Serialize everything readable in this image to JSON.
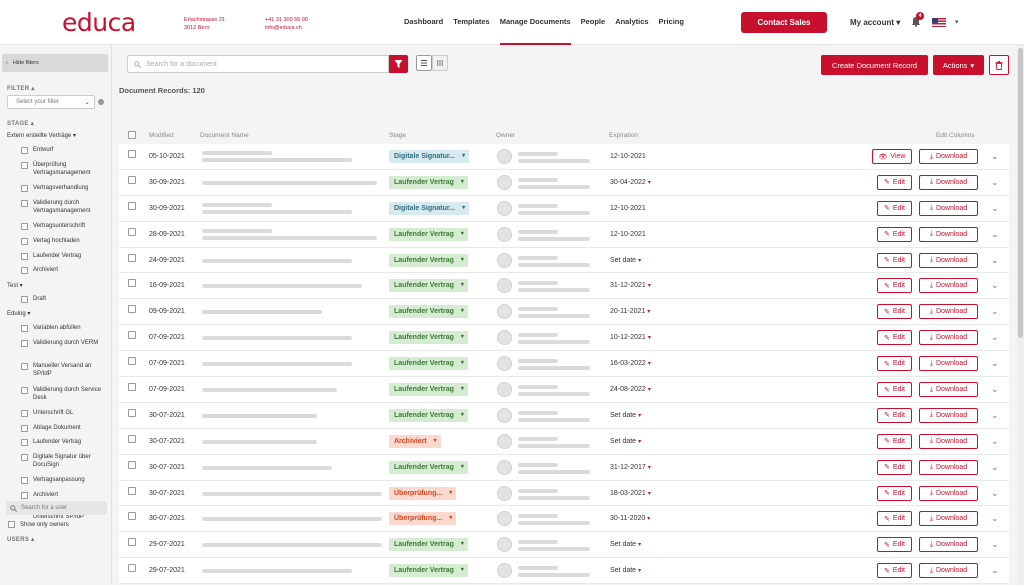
{
  "header": {
    "logo": "educa",
    "address": [
      "Erlachstrasse 21",
      "3012 Bern"
    ],
    "contact": [
      "+41 31 300 55 00",
      "info@educa.ch"
    ],
    "nav": [
      {
        "label": "Dashboard",
        "active": false
      },
      {
        "label": "Templates",
        "active": false
      },
      {
        "label": "Manage Documents",
        "active": true
      },
      {
        "label": "People",
        "active": false
      },
      {
        "label": "Analytics",
        "active": false
      },
      {
        "label": "Pricing",
        "active": false
      }
    ],
    "contact_sales": "Contact Sales",
    "my_account": "My account ▾",
    "notification_count": "4",
    "flag_caret": "▾"
  },
  "sidebar": {
    "hide_filters": "Hide filters",
    "filter_label": "FILTER ▴",
    "filter_placeholder": "Select your filter",
    "stage_label": "STAGE ▴",
    "groups": [
      {
        "label": "Extern erstellte Verträge ▾",
        "items": [
          "Entwurf",
          "Überprüfung Vertragsmanagement",
          "Vertragsverhandlung",
          "Validierung durch Vertragsmanagement",
          "Vertragsunterschrift",
          "Vertag hochladen",
          "Laufender Vertrag",
          "Archiviert"
        ]
      },
      {
        "label": "Test ▾",
        "items": [
          "Draft"
        ]
      },
      {
        "label": "Edulog ▾",
        "items": [
          "Variablen abfüllen",
          "Validierung durch VERM",
          "Manueller Versand an SP/IdP",
          "Validierung durch Service Desk",
          "Unterschrift GL",
          "Ablage Dokument",
          "Laufender Vertrag",
          "Digitale Signatur über DocuSign",
          "Vertragsanpassung",
          "Archiviert",
          "Vertragsversand / Unterschrift SP/IdP"
        ]
      }
    ],
    "users_label": "USERS ▴",
    "user_search_placeholder": "Search for a user",
    "show_only_owners": "Show only owners"
  },
  "toolbar": {
    "search_placeholder": "Search for a document",
    "create_label": "Create Document Record",
    "actions_label": "Actions",
    "records_label": "Document Records: 120"
  },
  "table": {
    "columns": {
      "modified": "Modified",
      "name": "Document Name",
      "stage": "Stage",
      "owner": "Owner",
      "expiration": "Expiration",
      "edit_columns": "Edit Columns"
    },
    "edit_label": "Edit",
    "view_label": "View",
    "download_label": "Download",
    "rows": [
      {
        "modified": "05-10-2021",
        "stage": "Digitale Signatur...",
        "stage_color": "blue",
        "expiration": "12-10-2021",
        "exp_caret": false,
        "action": "view"
      },
      {
        "modified": "30-09-2021",
        "stage": "Laufender Vertrag",
        "stage_color": "green",
        "expiration": "30-04-2022",
        "exp_caret": true,
        "action": "edit"
      },
      {
        "modified": "30-09-2021",
        "stage": "Digitale Signatur...",
        "stage_color": "blue",
        "expiration": "12-10-2021",
        "exp_caret": false,
        "action": "edit"
      },
      {
        "modified": "28-09-2021",
        "stage": "Laufender Vertrag",
        "stage_color": "green",
        "expiration": "12-10-2021",
        "exp_caret": false,
        "action": "edit"
      },
      {
        "modified": "24-09-2021",
        "stage": "Laufender Vertrag",
        "stage_color": "green",
        "expiration": "Set date",
        "exp_caret": true,
        "action": "edit"
      },
      {
        "modified": "16-09-2021",
        "stage": "Laufender Vertrag",
        "stage_color": "green",
        "expiration": "31-12-2021",
        "exp_caret": true,
        "action": "edit"
      },
      {
        "modified": "09-09-2021",
        "stage": "Laufender Vertrag",
        "stage_color": "green",
        "expiration": "20-11-2021",
        "exp_caret": true,
        "action": "edit"
      },
      {
        "modified": "07-09-2021",
        "stage": "Laufender Vertrag",
        "stage_color": "green",
        "expiration": "10-12-2021",
        "exp_caret": true,
        "action": "edit"
      },
      {
        "modified": "07-09-2021",
        "stage": "Laufender Vertrag",
        "stage_color": "green",
        "expiration": "16-03-2022",
        "exp_caret": true,
        "action": "edit"
      },
      {
        "modified": "07-09-2021",
        "stage": "Laufender Vertrag",
        "stage_color": "green",
        "expiration": "24-08-2022",
        "exp_caret": true,
        "action": "edit"
      },
      {
        "modified": "30-07-2021",
        "stage": "Laufender Vertrag",
        "stage_color": "green",
        "expiration": "Set date",
        "exp_caret": true,
        "action": "edit"
      },
      {
        "modified": "30-07-2021",
        "stage": "Archiviert",
        "stage_color": "orange",
        "expiration": "Set date",
        "exp_caret": true,
        "action": "edit"
      },
      {
        "modified": "30-07-2021",
        "stage": "Laufender Vertrag",
        "stage_color": "green",
        "expiration": "31-12-2017",
        "exp_caret": true,
        "action": "edit"
      },
      {
        "modified": "30-07-2021",
        "stage": "Überprüfung...",
        "stage_color": "orange",
        "expiration": "18-03-2021",
        "exp_caret": true,
        "action": "edit"
      },
      {
        "modified": "30-07-2021",
        "stage": "Überprüfung...",
        "stage_color": "orange",
        "expiration": "30-11-2020",
        "exp_caret": true,
        "action": "edit"
      },
      {
        "modified": "29-07-2021",
        "stage": "Laufender Vertrag",
        "stage_color": "green",
        "expiration": "Set date",
        "exp_caret": true,
        "action": "edit"
      },
      {
        "modified": "29-07-2021",
        "stage": "Laufender Vertrag",
        "stage_color": "green",
        "expiration": "Set date",
        "exp_caret": true,
        "action": "edit"
      }
    ]
  },
  "colors": {
    "brand": "#c8102e",
    "stage_green": "#d6ecd2",
    "stage_blue": "#d6eaf0",
    "stage_orange": "#fbd9cf"
  }
}
